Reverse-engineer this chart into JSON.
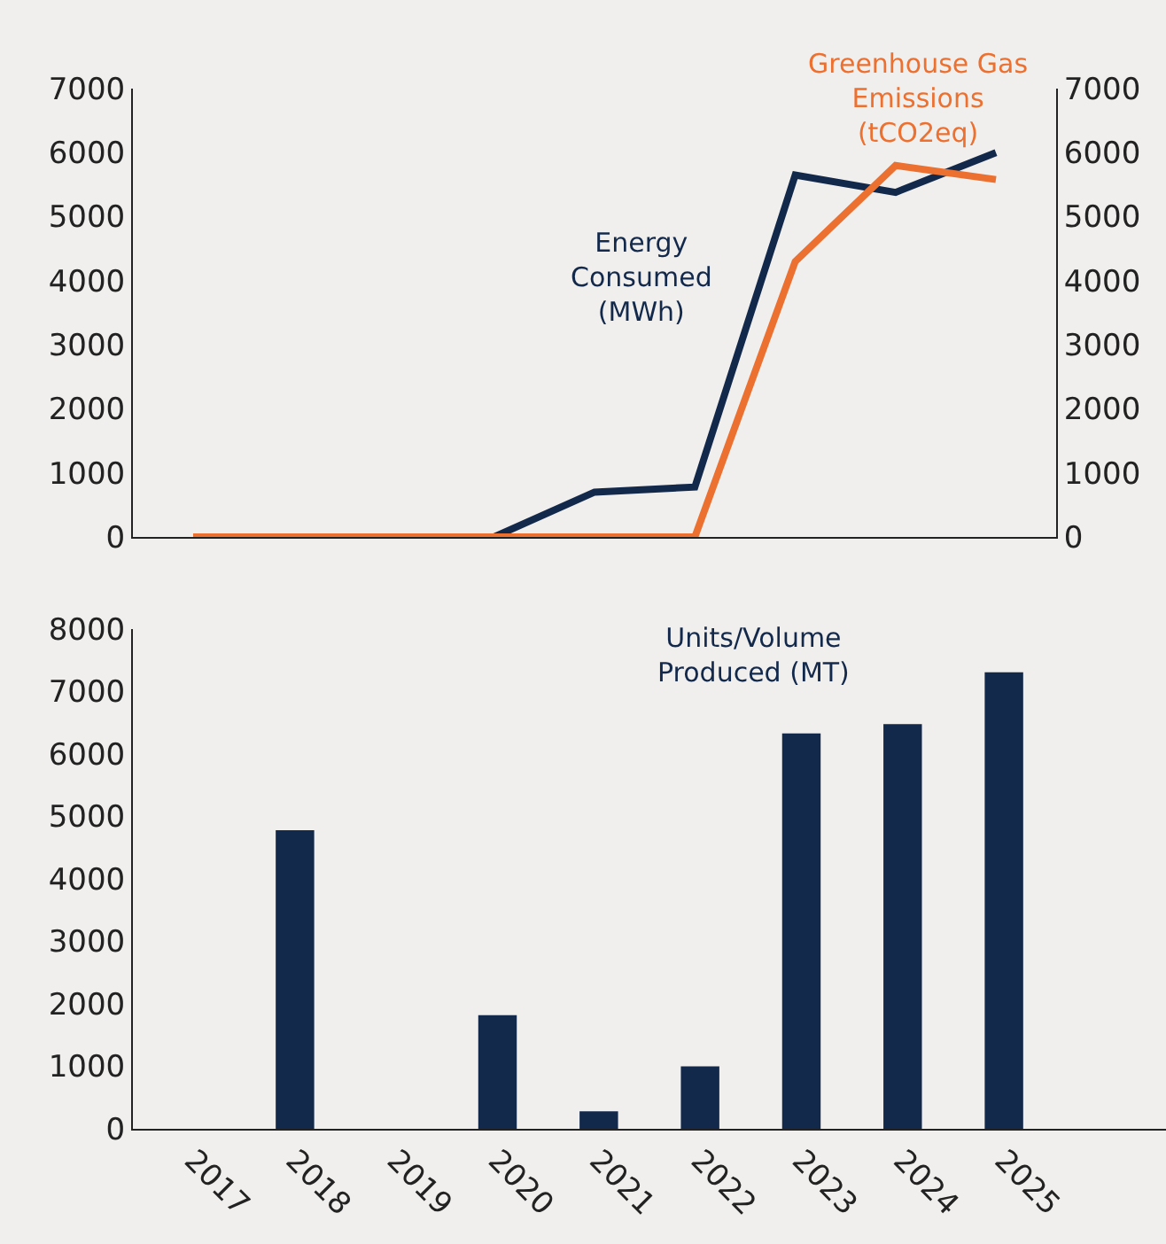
{
  "chart_data": [
    {
      "type": "line",
      "categories": [
        null,
        null,
        null,
        null,
        null,
        null,
        null,
        null,
        null
      ],
      "legend": false,
      "grid": false,
      "tick_labels": "y",
      "ylim": [
        0,
        7000
      ],
      "yticks": [
        0,
        1000,
        2000,
        3000,
        4000,
        5000,
        6000,
        7000
      ],
      "y2lim": [
        0,
        7000
      ],
      "y2ticks": [
        0,
        1000,
        2000,
        3000,
        4000,
        5000,
        6000,
        7000
      ],
      "series": [
        {
          "name": "Energy Consumed (MWh)",
          "color": "#13294b",
          "values": [
            null,
            null,
            null,
            0,
            700,
            780,
            5650,
            5380,
            6000
          ]
        },
        {
          "name": "Greenhouse Gas Emissions (tCO2eq)",
          "color": "#ec7030",
          "axis": "y2",
          "values": [
            0,
            0,
            0,
            0,
            0,
            0,
            4300,
            5800,
            5580
          ]
        }
      ]
    },
    {
      "type": "bar",
      "categories": [
        "2017",
        "2018",
        "2019",
        "2020",
        "2021",
        "2022",
        "2023",
        "2024",
        "2025"
      ],
      "legend": false,
      "grid": false,
      "ylim": [
        0,
        8000
      ],
      "yticks": [
        0,
        1000,
        2000,
        3000,
        4000,
        5000,
        6000,
        7000,
        8000
      ],
      "series": [
        {
          "name": "Units/Volume Produced (MT)",
          "color": "#13294b",
          "values": [
            0,
            4780,
            0,
            1820,
            280,
            1000,
            6330,
            6480,
            7310
          ]
        }
      ]
    }
  ]
}
